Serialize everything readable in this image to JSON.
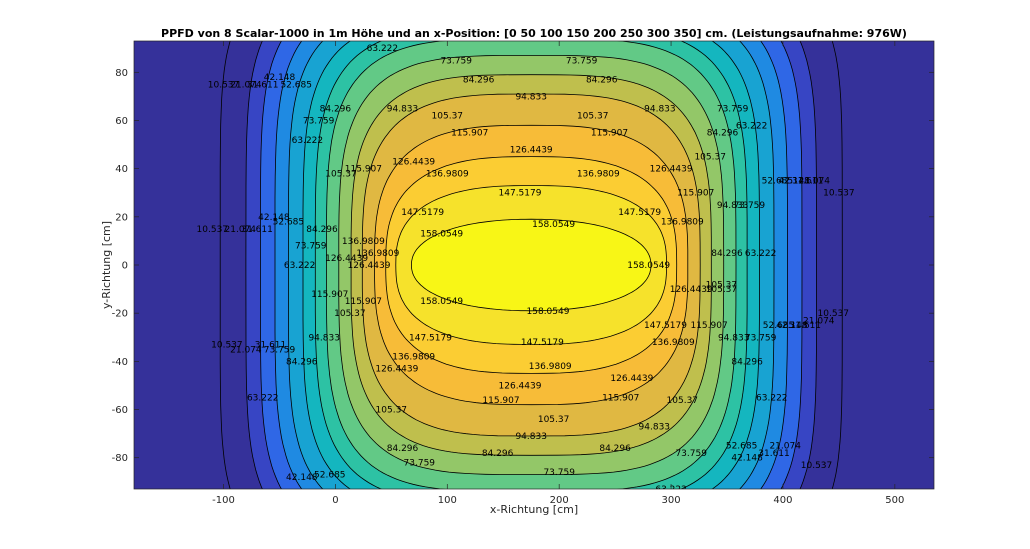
{
  "chart_data": {
    "type": "heatmap",
    "subtype": "filled-contour",
    "title": "PPFD von 8 Scalar-1000 in 1m Höhe und an x-Position: [0   50  100  150  200  250  300  350] cm. (Leistungsaufnahme: 976W)",
    "xlabel": "x-Richtung [cm]",
    "ylabel": "y-Richtung [cm]",
    "xlim": [
      -180,
      535
    ],
    "ylim": [
      -93,
      93
    ],
    "xticks": [
      -100,
      0,
      100,
      200,
      300,
      400,
      500
    ],
    "yticks": [
      -80,
      -60,
      -40,
      -20,
      0,
      20,
      40,
      60,
      80
    ],
    "grid": false,
    "colormap": "parula",
    "level_labels": [
      "10.537",
      "21.074",
      "31.611",
      "42.148",
      "52.685",
      "63.222",
      "73.759",
      "84.296",
      "94.833",
      "105.37",
      "115.907",
      "126.4439",
      "136.9809",
      "147.5179",
      "158.0549"
    ],
    "levels": [
      10.537,
      21.074,
      31.611,
      42.148,
      52.685,
      63.222,
      73.759,
      84.296,
      94.833,
      105.37,
      115.907,
      126.4439,
      136.9809,
      147.5179,
      158.0549
    ],
    "level_colors": [
      "#35319a",
      "#3745c4",
      "#2f67e6",
      "#1f8ae2",
      "#18a3d2",
      "#14b6bf",
      "#2dc2a4",
      "#62c986",
      "#93c768",
      "#bfbf4d",
      "#e0b842",
      "#f7bc38",
      "#fbcd33",
      "#f6e22b",
      "#f8f616"
    ],
    "background_color": "#35319a",
    "center": [
      175,
      0
    ],
    "contours": [
      {
        "level": 10.537,
        "half_width": 278,
        "half_height": 124,
        "exponent": 6.0
      },
      {
        "level": 21.074,
        "half_width": 255,
        "half_height": 120,
        "exponent": 5.2
      },
      {
        "level": 31.611,
        "half_width": 242,
        "half_height": 116,
        "exponent": 5.0
      },
      {
        "level": 42.148,
        "half_width": 229,
        "half_height": 112,
        "exponent": 4.8
      },
      {
        "level": 52.685,
        "half_width": 217,
        "half_height": 108,
        "exponent": 4.6
      },
      {
        "level": 63.222,
        "half_width": 204,
        "half_height": 103,
        "exponent": 4.4
      },
      {
        "level": 73.759,
        "half_width": 193,
        "half_height": 99,
        "exponent": 4.1
      },
      {
        "level": 84.296,
        "half_width": 183,
        "half_height": 94,
        "exponent": 3.9
      },
      {
        "level": 94.833,
        "half_width": 172,
        "half_height": 87,
        "exponent": 3.7
      },
      {
        "level": 105.37,
        "half_width": 161,
        "half_height": 79,
        "exponent": 3.5
      },
      {
        "level": 115.907,
        "half_width": 151,
        "half_height": 71,
        "exponent": 3.3
      },
      {
        "level": 126.4439,
        "half_width": 140,
        "half_height": 58,
        "exponent": 3.0
      },
      {
        "level": 136.9809,
        "half_width": 130,
        "half_height": 45,
        "exponent": 2.8
      },
      {
        "level": 147.5179,
        "half_width": 121,
        "half_height": 33,
        "exponent": 2.6
      },
      {
        "level": 158.0549,
        "half_width": 107,
        "half_height": 19,
        "exponent": 2.2
      }
    ],
    "contour_labels": [
      {
        "text": "63.222",
        "x": 42,
        "y": 90
      },
      {
        "text": "73.759",
        "x": 108,
        "y": 85
      },
      {
        "text": "73.759",
        "x": 220,
        "y": 85
      },
      {
        "text": "84.296",
        "x": 128,
        "y": 77
      },
      {
        "text": "84.296",
        "x": 238,
        "y": 77
      },
      {
        "text": "94.833",
        "x": 175,
        "y": 70
      },
      {
        "text": "94.833",
        "x": 60,
        "y": 65
      },
      {
        "text": "94.833",
        "x": 290,
        "y": 65
      },
      {
        "text": "105.37",
        "x": 100,
        "y": 62
      },
      {
        "text": "105.37",
        "x": 230,
        "y": 62
      },
      {
        "text": "115.907",
        "x": 120,
        "y": 55
      },
      {
        "text": "115.907",
        "x": 245,
        "y": 55
      },
      {
        "text": "126.4439",
        "x": 175,
        "y": 48
      },
      {
        "text": "126.4439",
        "x": 70,
        "y": 43
      },
      {
        "text": "126.4439",
        "x": 300,
        "y": 40
      },
      {
        "text": "136.9809",
        "x": 100,
        "y": 38
      },
      {
        "text": "136.9809",
        "x": 235,
        "y": 38
      },
      {
        "text": "147.5179",
        "x": 165,
        "y": 30
      },
      {
        "text": "147.5179",
        "x": 272,
        "y": 22
      },
      {
        "text": "147.5179",
        "x": 78,
        "y": 22
      },
      {
        "text": "158.0549",
        "x": 95,
        "y": 13
      },
      {
        "text": "158.0549",
        "x": 195,
        "y": 17
      },
      {
        "text": "158.0549",
        "x": 280,
        "y": 0
      },
      {
        "text": "136.9809",
        "x": 310,
        "y": 18
      },
      {
        "text": "136.9809",
        "x": 38,
        "y": 5
      },
      {
        "text": "126.4439",
        "x": 30,
        "y": 0
      },
      {
        "text": "126.4439",
        "x": 318,
        "y": -10
      },
      {
        "text": "115.907",
        "x": 25,
        "y": -15
      },
      {
        "text": "115.907",
        "x": 334,
        "y": -25
      },
      {
        "text": "105.37",
        "x": 13,
        "y": -20
      },
      {
        "text": "105.37",
        "x": 345,
        "y": -10
      },
      {
        "text": "94.833",
        "x": -10,
        "y": -30
      },
      {
        "text": "94.833",
        "x": 356,
        "y": -30
      },
      {
        "text": "84.296",
        "x": -30,
        "y": -40
      },
      {
        "text": "84.296",
        "x": 368,
        "y": -40
      },
      {
        "text": "73.759",
        "x": -50,
        "y": -35
      },
      {
        "text": "73.759",
        "x": 380,
        "y": -30
      },
      {
        "text": "63.222",
        "x": -65,
        "y": -55
      },
      {
        "text": "63.222",
        "x": 390,
        "y": -55
      },
      {
        "text": "158.0549",
        "x": 95,
        "y": -15
      },
      {
        "text": "158.0549",
        "x": 190,
        "y": -19
      },
      {
        "text": "147.5179",
        "x": 85,
        "y": -30
      },
      {
        "text": "147.5179",
        "x": 185,
        "y": -32
      },
      {
        "text": "147.5179",
        "x": 295,
        "y": -25
      },
      {
        "text": "136.9809",
        "x": 70,
        "y": -38
      },
      {
        "text": "136.9809",
        "x": 192,
        "y": -42
      },
      {
        "text": "136.9809",
        "x": 302,
        "y": -32
      },
      {
        "text": "126.4439",
        "x": 55,
        "y": -43
      },
      {
        "text": "126.4439",
        "x": 165,
        "y": -50
      },
      {
        "text": "126.4439",
        "x": 265,
        "y": -47
      },
      {
        "text": "115.907",
        "x": 148,
        "y": -56
      },
      {
        "text": "115.907",
        "x": 255,
        "y": -55
      },
      {
        "text": "105.37",
        "x": 50,
        "y": -60
      },
      {
        "text": "105.37",
        "x": 195,
        "y": -64
      },
      {
        "text": "105.37",
        "x": 310,
        "y": -56
      },
      {
        "text": "94.833",
        "x": 175,
        "y": -71
      },
      {
        "text": "94.833",
        "x": 285,
        "y": -67
      },
      {
        "text": "84.296",
        "x": 60,
        "y": -76
      },
      {
        "text": "84.296",
        "x": 145,
        "y": -78
      },
      {
        "text": "84.296",
        "x": 250,
        "y": -76
      },
      {
        "text": "73.759",
        "x": 75,
        "y": -82
      },
      {
        "text": "73.759",
        "x": 200,
        "y": -86
      },
      {
        "text": "73.759",
        "x": 318,
        "y": -78
      },
      {
        "text": "63.222",
        "x": 300,
        "y": -93
      },
      {
        "text": "52.685",
        "x": -5,
        "y": -87
      },
      {
        "text": "52.685",
        "x": 363,
        "y": -75
      },
      {
        "text": "42.148",
        "x": -30,
        "y": -88
      },
      {
        "text": "42.148",
        "x": 368,
        "y": -80
      },
      {
        "text": "31.611",
        "x": -58,
        "y": -33
      },
      {
        "text": "31.611",
        "x": 392,
        "y": -78
      },
      {
        "text": "21.074",
        "x": -80,
        "y": -35
      },
      {
        "text": "21.074",
        "x": 402,
        "y": -75
      },
      {
        "text": "10.537",
        "x": -97,
        "y": -33
      },
      {
        "text": "10.537",
        "x": 430,
        "y": -83
      },
      {
        "text": "10.537",
        "x": -110,
        "y": 15
      },
      {
        "text": "10.537",
        "x": -100,
        "y": 75
      },
      {
        "text": "10.537",
        "x": 445,
        "y": -20
      },
      {
        "text": "10.537",
        "x": 450,
        "y": 30
      },
      {
        "text": "21.074",
        "x": -85,
        "y": 15
      },
      {
        "text": "21.074",
        "x": -80,
        "y": 75
      },
      {
        "text": "21.074",
        "x": 428,
        "y": 35
      },
      {
        "text": "21.074",
        "x": 432,
        "y": -23
      },
      {
        "text": "31.611",
        "x": -70,
        "y": 15
      },
      {
        "text": "31.611",
        "x": -65,
        "y": 75
      },
      {
        "text": "31.611",
        "x": 422,
        "y": 35
      },
      {
        "text": "31.611",
        "x": 420,
        "y": -25
      },
      {
        "text": "42.148",
        "x": -55,
        "y": 20
      },
      {
        "text": "42.148",
        "x": -50,
        "y": 78
      },
      {
        "text": "42.148",
        "x": 410,
        "y": 35
      },
      {
        "text": "42.148",
        "x": 408,
        "y": -25
      },
      {
        "text": "52.685",
        "x": -42,
        "y": 18
      },
      {
        "text": "52.685",
        "x": -35,
        "y": 75
      },
      {
        "text": "52.685",
        "x": 395,
        "y": 35
      },
      {
        "text": "52.685",
        "x": 396,
        "y": -25
      },
      {
        "text": "63.222",
        "x": -25,
        "y": 52
      },
      {
        "text": "63.222",
        "x": -32,
        "y": 0
      },
      {
        "text": "63.222",
        "x": 372,
        "y": 58
      },
      {
        "text": "63.222",
        "x": 380,
        "y": 5
      },
      {
        "text": "73.759",
        "x": -15,
        "y": 60
      },
      {
        "text": "73.759",
        "x": -22,
        "y": 8
      },
      {
        "text": "73.759",
        "x": 355,
        "y": 65
      },
      {
        "text": "73.759",
        "x": 370,
        "y": 25
      },
      {
        "text": "84.296",
        "x": 0,
        "y": 65
      },
      {
        "text": "84.296",
        "x": -12,
        "y": 15
      },
      {
        "text": "84.296",
        "x": 346,
        "y": 55
      },
      {
        "text": "84.296",
        "x": 350,
        "y": 5
      },
      {
        "text": "94.833",
        "x": 355,
        "y": 25
      },
      {
        "text": "105.37",
        "x": 5,
        "y": 38
      },
      {
        "text": "105.37",
        "x": 335,
        "y": 45
      },
      {
        "text": "115.907",
        "x": 25,
        "y": 40
      },
      {
        "text": "115.907",
        "x": 322,
        "y": 30
      },
      {
        "text": "126.4439",
        "x": 10,
        "y": 3
      },
      {
        "text": "136.9809",
        "x": 25,
        "y": 10
      },
      {
        "text": "105.37",
        "x": 345,
        "y": -8
      },
      {
        "text": "115.907",
        "x": -5,
        "y": -12
      }
    ]
  }
}
